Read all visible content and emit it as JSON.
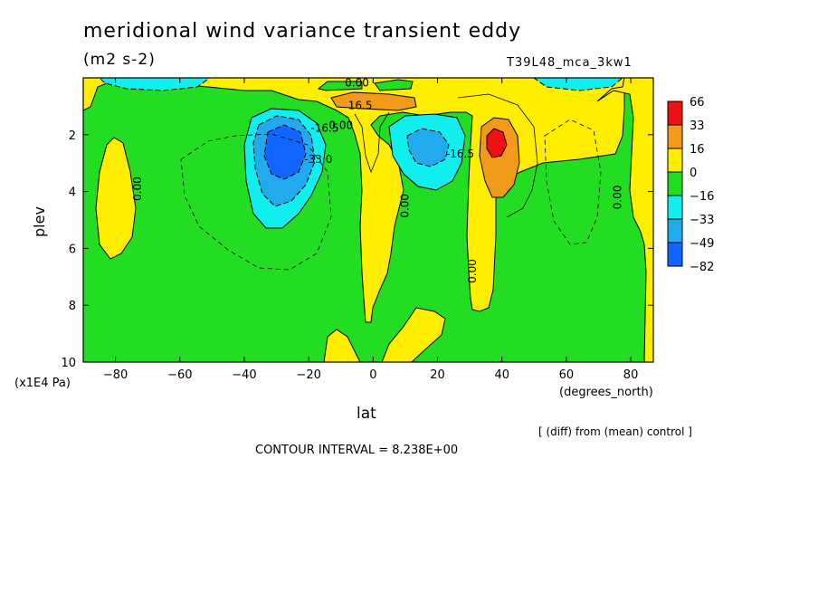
{
  "title": "meridional wind variance transient eddy",
  "units": "(m2 s-2)",
  "run_label": "T39L48_mca_3kw1",
  "note": "[ (diff) from (mean) control ]",
  "contour_interval": "CONTOUR INTERVAL = 8.238E+00",
  "colors": {
    "red": "#ee1111",
    "orange": "#f29b1a",
    "yellow": "#ffee00",
    "green": "#22dd22",
    "cyan": "#11eeee",
    "lightblue": "#22aaee",
    "blue": "#1166ff"
  },
  "chart_data": {
    "type": "contour",
    "xlabel": "lat",
    "x_unit": "(degrees_north)",
    "ylabel": "plev",
    "y_unit": "(x1E4 Pa)",
    "xlim": [
      -90,
      87
    ],
    "ylim": [
      0,
      10
    ],
    "y_inverted": true,
    "x_ticks": [
      -80,
      -60,
      -40,
      -20,
      0,
      20,
      40,
      60,
      80
    ],
    "y_ticks": [
      2,
      4,
      6,
      8,
      10
    ],
    "contour_labels": [
      {
        "text": "0.00",
        "lat": -72,
        "plev": 3.9
      },
      {
        "text": "0.00",
        "lat": -5,
        "plev": 0.3
      },
      {
        "text": "16.5",
        "lat": -4,
        "plev": 1.1
      },
      {
        "text": "0.00",
        "lat": -10,
        "plev": 1.8
      },
      {
        "text": "-16.5",
        "lat": -15,
        "plev": 1.9
      },
      {
        "text": "-33.0",
        "lat": -17,
        "plev": 3.0
      },
      {
        "text": "0.00",
        "lat": 11,
        "plev": 4.5
      },
      {
        "text": "-16.5",
        "lat": 27,
        "plev": 2.8
      },
      {
        "text": "0.00",
        "lat": 32,
        "plev": 6.8
      },
      {
        "text": "0.00",
        "lat": 77,
        "plev": 4.2
      }
    ],
    "colorbar": {
      "labels": [
        "66",
        "33",
        "16",
        "0",
        "-16",
        "-33",
        "-49",
        "-82"
      ],
      "colors": [
        "#ee1111",
        "#f29b1a",
        "#ffee00",
        "#22dd22",
        "#11eeee",
        "#22aaee",
        "#1166ff"
      ]
    }
  }
}
